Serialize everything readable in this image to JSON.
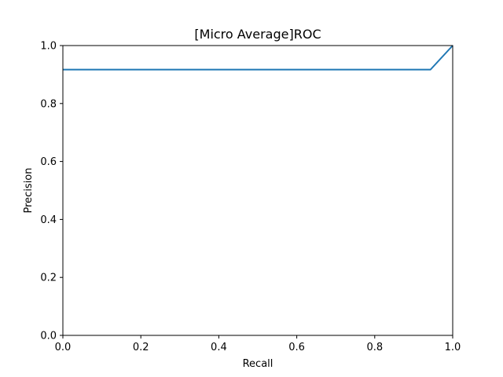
{
  "chart_data": {
    "type": "line",
    "title": "[Micro Average]ROC",
    "xlabel": "Recall",
    "ylabel": "Precision",
    "xlim": [
      0.0,
      1.0
    ],
    "ylim": [
      0.0,
      1.0
    ],
    "grid": false,
    "xticks": [
      "0.0",
      "0.2",
      "0.4",
      "0.6",
      "0.8",
      "1.0"
    ],
    "yticks": [
      "0.0",
      "0.2",
      "0.4",
      "0.6",
      "0.8",
      "1.0"
    ],
    "series": [
      {
        "color": "#1f77b4",
        "x": [
          0.0,
          0.943,
          1.0
        ],
        "y": [
          0.917,
          0.917,
          1.0
        ]
      }
    ]
  }
}
